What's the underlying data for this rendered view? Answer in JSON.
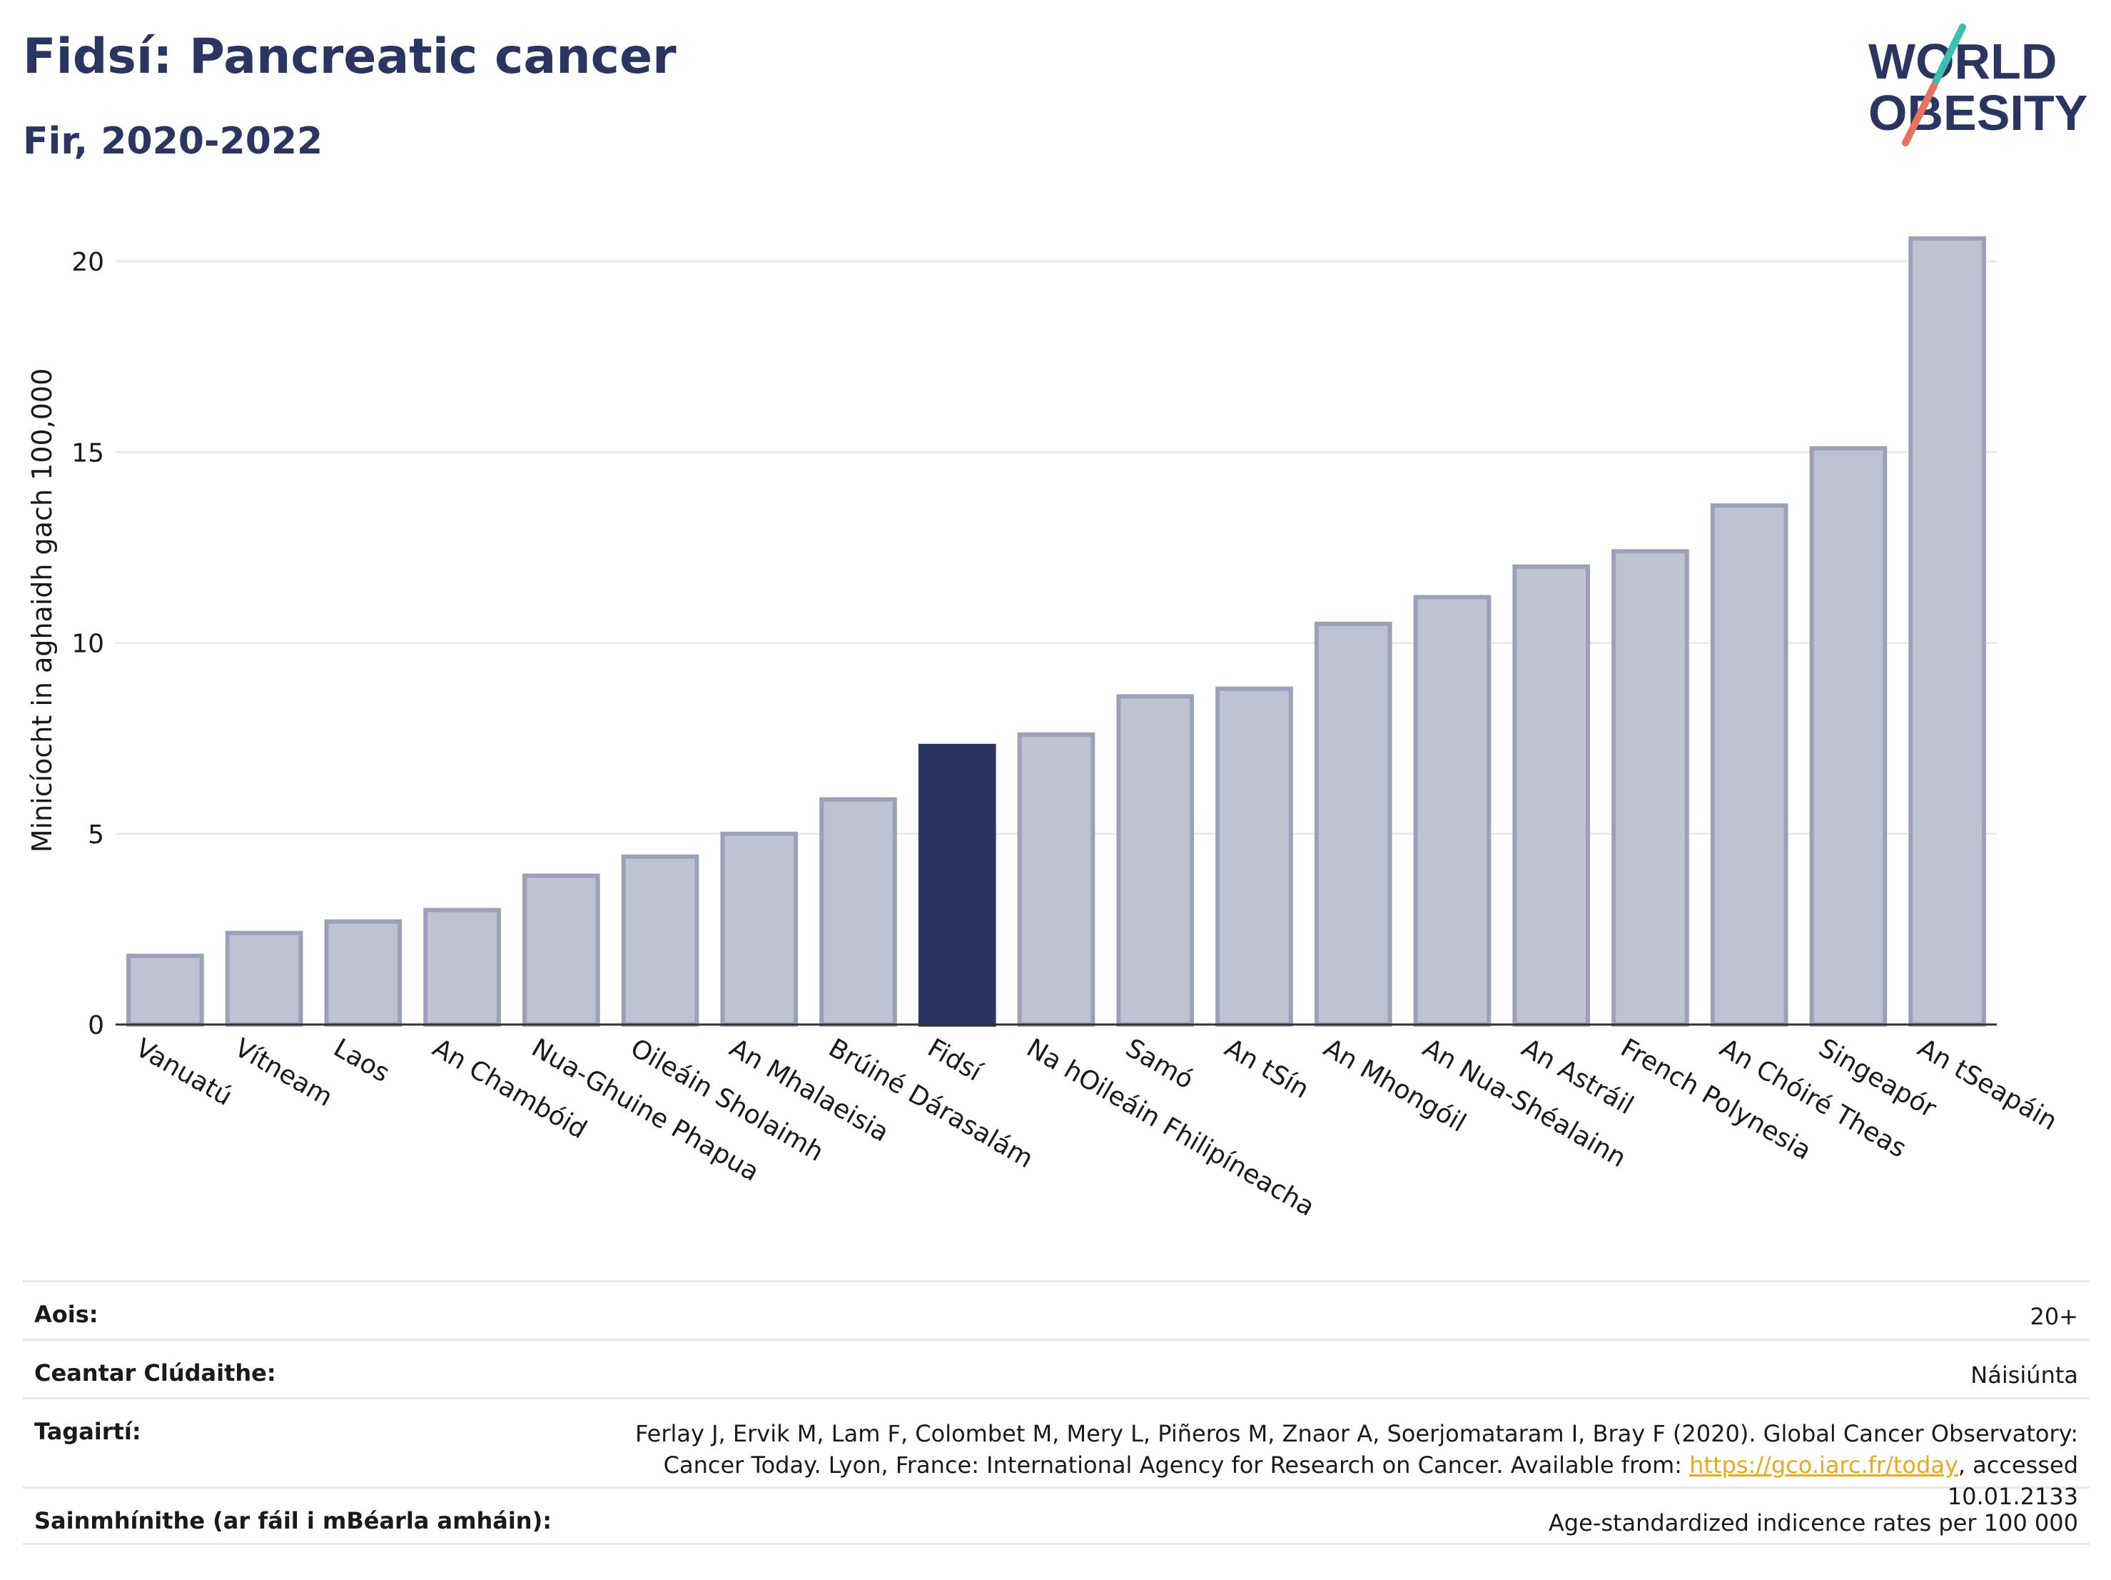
{
  "header": {
    "title": "Fidsí: Pancreatic cancer",
    "subtitle": "Fir, 2020-2022"
  },
  "logo": {
    "line1": "WORLD",
    "line2": "OBESITY"
  },
  "chart_data": {
    "type": "bar",
    "ylabel": "Minicíocht in aghaidh gach 100,000",
    "xlabel": "",
    "ylim": [
      0,
      22
    ],
    "yticks": [
      0,
      5,
      10,
      15,
      20
    ],
    "grid": true,
    "highlight": "Fidsí",
    "colors": {
      "bar": "#bfc3d1",
      "bar_stroke": "#9ba1b8",
      "highlight": "#2a3561"
    },
    "categories": [
      "Vanuatú",
      "Vítneam",
      "Laos",
      "An Chambóid",
      "Nua-Ghuine Phapua",
      "Oileáin Sholaimh",
      "An Mhalaeisia",
      "Brúiné Dárasalám",
      "Fidsí",
      "Na hOileáin Fhilipíneacha",
      "Samó",
      "An tSín",
      "An Mhongóil",
      "An Nua-Shéalainn",
      "An Astráil",
      "French Polynesia",
      "An Chóiré Theas",
      "Singeapór",
      "An tSeapáin"
    ],
    "values": [
      1.8,
      2.4,
      2.7,
      3.0,
      3.9,
      4.4,
      5.0,
      5.9,
      7.3,
      7.6,
      8.6,
      8.8,
      10.5,
      11.2,
      12.0,
      12.4,
      13.6,
      15.1,
      20.6
    ]
  },
  "info": {
    "age_label": "Aois:",
    "age_value": "20+",
    "area_label": "Ceantar Clúdaithe:",
    "area_value": "Náisiúnta",
    "ref_label": "Tagairtí:",
    "ref_text_1": "Ferlay J, Ervik M, Lam F, Colombet M, Mery L, Piñeros M, Znaor A, Soerjomataram I, Bray F (2020). Global Cancer Observatory: Cancer Today. Lyon, France: International Agency for Research on Cancer. Available from: ",
    "ref_link": "https://gco.iarc.fr/today",
    "ref_text_2": ", accessed 10.01.2133",
    "def_label": "Sainmhínithe (ar fáil i mBéarla amháin):",
    "def_value": "Age-standardized indicence rates per 100 000"
  }
}
